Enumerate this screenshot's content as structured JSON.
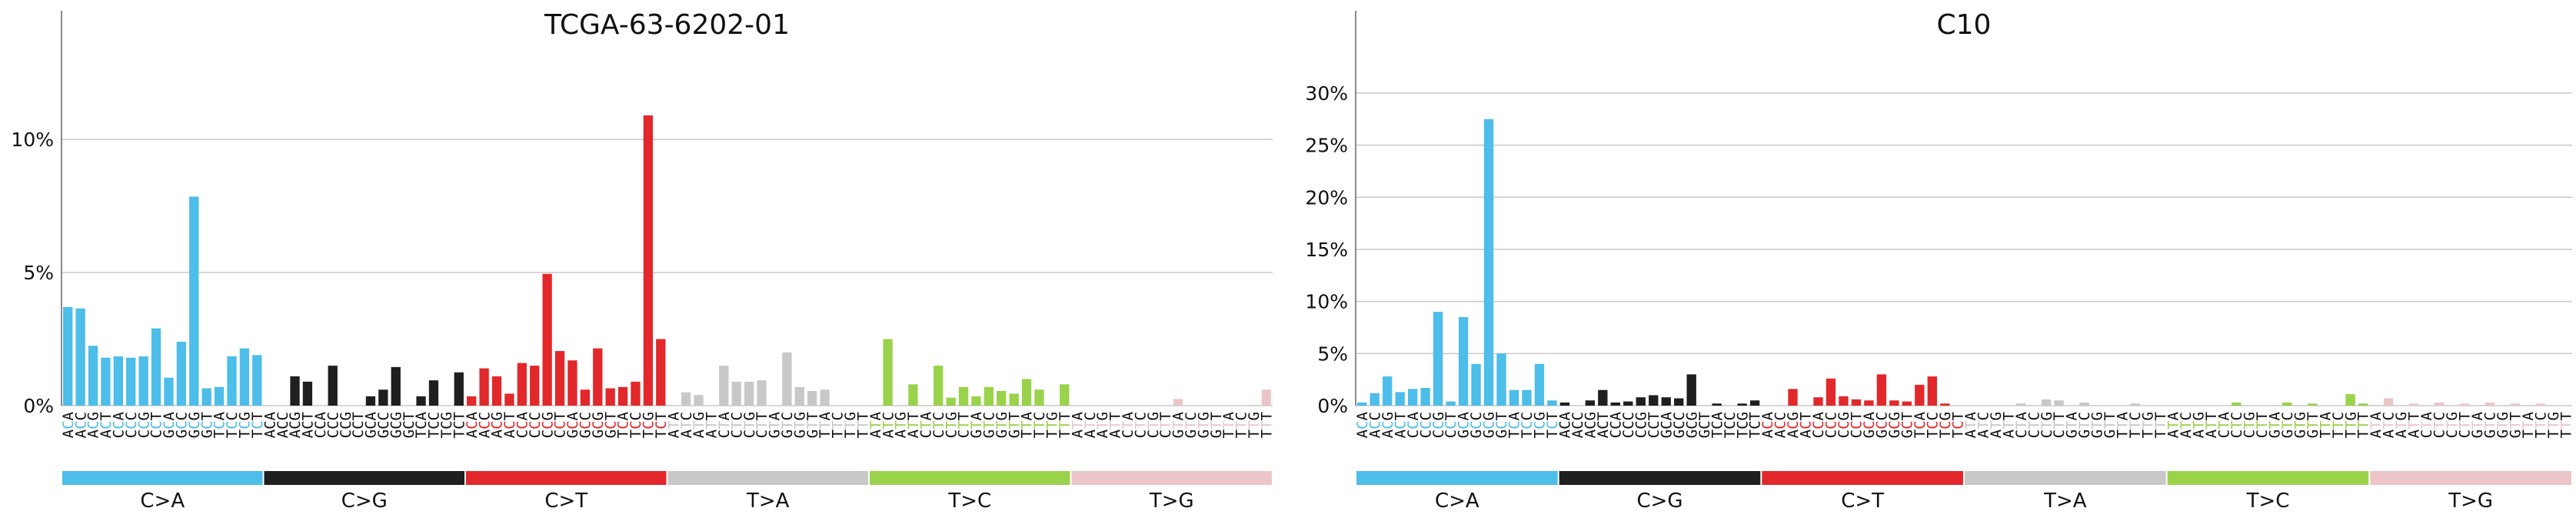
{
  "chart_data": [
    {
      "type": "bar",
      "title": "TCGA-63-6202-01",
      "ylim": [
        0,
        13.5
      ],
      "yticks": [
        0,
        5,
        10
      ],
      "ytick_labels": [
        "0%",
        "5%",
        "10%"
      ],
      "grid": true,
      "mutation_types": [
        "C>A",
        "C>G",
        "C>T",
        "T>A",
        "T>C",
        "T>G"
      ],
      "colors": [
        "#4dbde9",
        "#1f1f1f",
        "#e2282a",
        "#c8c8c8",
        "#9ad24b",
        "#ebc5c7"
      ],
      "categories": [
        "ACA",
        "ACC",
        "ACG",
        "ACT",
        "CCA",
        "CCC",
        "CCG",
        "CCT",
        "GCA",
        "GCC",
        "GCG",
        "GCT",
        "TCA",
        "TCC",
        "TCG",
        "TCT",
        "ACA",
        "ACC",
        "ACG",
        "ACT",
        "CCA",
        "CCC",
        "CCG",
        "CCT",
        "GCA",
        "GCC",
        "GCG",
        "GCT",
        "TCA",
        "TCC",
        "TCG",
        "TCT",
        "ACA",
        "ACC",
        "ACG",
        "ACT",
        "CCA",
        "CCC",
        "CCG",
        "CCT",
        "GCA",
        "GCC",
        "GCG",
        "GCT",
        "TCA",
        "TCC",
        "TCG",
        "TCT",
        "ATA",
        "ATC",
        "ATG",
        "ATT",
        "CTA",
        "CTC",
        "CTG",
        "CTT",
        "GTA",
        "GTC",
        "GTG",
        "GTT",
        "TTA",
        "TTC",
        "TTG",
        "TTT",
        "ATA",
        "ATC",
        "ATG",
        "ATT",
        "CTA",
        "CTC",
        "CTG",
        "CTT",
        "GTA",
        "GTC",
        "GTG",
        "GTT",
        "TTA",
        "TTC",
        "TTG",
        "TTT",
        "ATA",
        "ATC",
        "ATG",
        "ATT",
        "CTA",
        "CTC",
        "CTG",
        "CTT",
        "GTA",
        "GTC",
        "GTG",
        "GTT",
        "TTA",
        "TTC",
        "TTG",
        "TTT"
      ],
      "values": [
        3.7,
        3.65,
        2.25,
        1.8,
        1.85,
        1.8,
        1.85,
        2.9,
        1.05,
        2.4,
        7.85,
        0.65,
        0.7,
        1.85,
        2.15,
        1.9,
        0,
        0,
        1.1,
        0.9,
        0,
        1.5,
        0,
        0,
        0.35,
        0.6,
        1.45,
        0,
        0.35,
        0.95,
        0,
        1.25,
        0.35,
        1.4,
        1.1,
        0.45,
        1.6,
        1.5,
        4.95,
        2.05,
        1.7,
        0.6,
        2.15,
        0.65,
        0.7,
        0.9,
        10.9,
        2.5,
        0,
        0.5,
        0.4,
        0,
        1.5,
        0.9,
        0.9,
        0.95,
        0,
        2.0,
        0.7,
        0.55,
        0.6,
        0,
        0,
        0,
        0,
        2.5,
        0,
        0.8,
        0,
        1.5,
        0.3,
        0.7,
        0.35,
        0.7,
        0.55,
        0.45,
        1.0,
        0.6,
        0,
        0.8,
        0,
        0,
        0,
        0,
        0,
        0,
        0,
        0,
        0.25,
        0,
        0,
        0,
        0,
        0,
        0,
        0.6
      ]
    },
    {
      "type": "bar",
      "title": "C10",
      "ylim": [
        0,
        34.5
      ],
      "yticks": [
        0,
        5,
        10,
        15,
        20,
        25,
        30
      ],
      "ytick_labels": [
        "0%",
        "5%",
        "10%",
        "15%",
        "20%",
        "25%",
        "30%"
      ],
      "grid": true,
      "mutation_types": [
        "C>A",
        "C>G",
        "C>T",
        "T>A",
        "T>C",
        "T>G"
      ],
      "colors": [
        "#4dbde9",
        "#1f1f1f",
        "#e2282a",
        "#c8c8c8",
        "#9ad24b",
        "#ebc5c7"
      ],
      "categories": [
        "ACA",
        "ACC",
        "ACG",
        "ACT",
        "CCA",
        "CCC",
        "CCG",
        "CCT",
        "GCA",
        "GCC",
        "GCG",
        "GCT",
        "TCA",
        "TCC",
        "TCG",
        "TCT",
        "ACA",
        "ACC",
        "ACG",
        "ACT",
        "CCA",
        "CCC",
        "CCG",
        "CCT",
        "GCA",
        "GCC",
        "GCG",
        "GCT",
        "TCA",
        "TCC",
        "TCG",
        "TCT",
        "ACA",
        "ACC",
        "ACG",
        "ACT",
        "CCA",
        "CCC",
        "CCG",
        "CCT",
        "GCA",
        "GCC",
        "GCG",
        "GCT",
        "TCA",
        "TCC",
        "TCG",
        "TCT",
        "ATA",
        "ATC",
        "ATG",
        "ATT",
        "CTA",
        "CTC",
        "CTG",
        "CTT",
        "GTA",
        "GTC",
        "GTG",
        "GTT",
        "TTA",
        "TTC",
        "TTG",
        "TTT",
        "ATA",
        "ATC",
        "ATG",
        "ATT",
        "CTA",
        "CTC",
        "CTG",
        "CTT",
        "GTA",
        "GTC",
        "GTG",
        "GTT",
        "TTA",
        "TTC",
        "TTG",
        "TTT",
        "ATA",
        "ATC",
        "ATG",
        "ATT",
        "CTA",
        "CTC",
        "CTG",
        "CTT",
        "GTA",
        "GTC",
        "GTG",
        "GTT",
        "TTA",
        "TTC",
        "TTG",
        "TTT"
      ],
      "values": [
        0.3,
        1.2,
        2.8,
        1.3,
        1.6,
        1.7,
        9.0,
        0.4,
        8.5,
        4.0,
        27.5,
        5.0,
        1.5,
        1.5,
        4.0,
        0.5,
        0.3,
        0,
        0.5,
        1.5,
        0.3,
        0.4,
        0.8,
        1.0,
        0.8,
        0.7,
        3.0,
        0,
        0.2,
        0,
        0.2,
        0.5,
        0,
        0,
        1.6,
        0,
        0.8,
        2.6,
        0.9,
        0.6,
        0.5,
        3.0,
        0.5,
        0.4,
        2.0,
        2.8,
        0.2,
        0,
        0,
        0,
        0,
        0,
        0.2,
        0,
        0.6,
        0.5,
        0,
        0.3,
        0,
        0,
        0,
        0.2,
        0,
        0,
        0,
        0,
        0,
        0,
        0,
        0.3,
        0,
        0,
        0,
        0.3,
        0,
        0.2,
        0,
        0,
        1.1,
        0.2,
        0,
        0.7,
        0,
        0.2,
        0,
        0.3,
        0,
        0.2,
        0,
        0.3,
        0,
        0.2,
        0,
        0.2,
        0,
        0
      ]
    }
  ]
}
